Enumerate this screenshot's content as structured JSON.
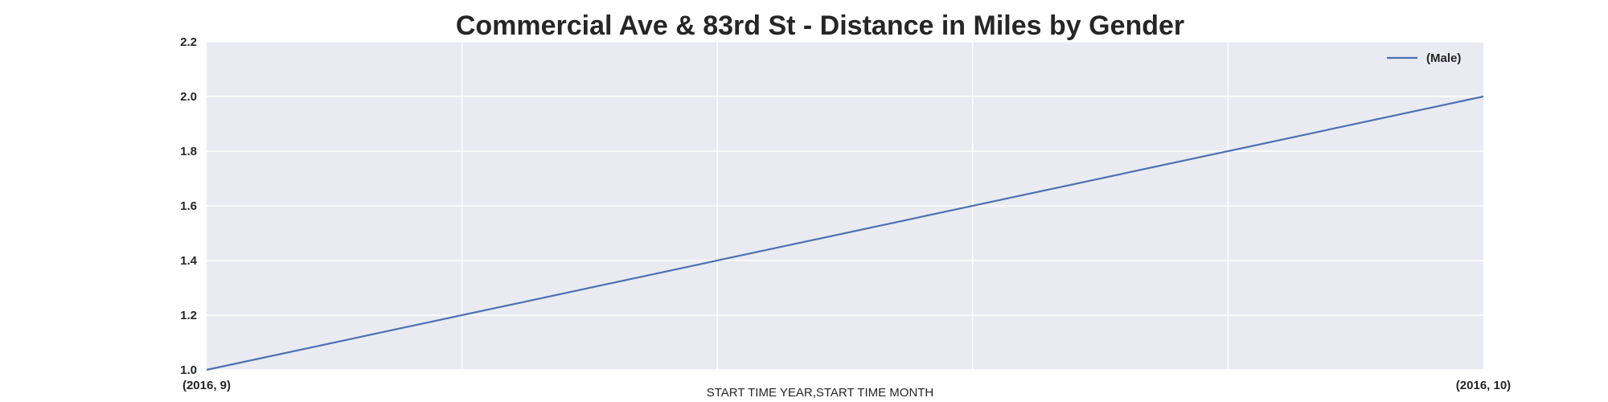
{
  "chart_data": {
    "type": "line",
    "title": "Commercial Ave & 83rd St - Distance in Miles by Gender",
    "xlabel": "START TIME YEAR,START TIME MONTH",
    "ylabel": "",
    "x": [
      "(2016, 9)",
      "(2016, 10)"
    ],
    "xtick_labels": [
      "(2016, 9)",
      "(2016, 10)"
    ],
    "ylim": [
      1.0,
      2.2
    ],
    "yticks": [
      1.0,
      1.2,
      1.4,
      1.6,
      1.8,
      2.0,
      2.2
    ],
    "ytick_labels": [
      "1.0",
      "1.2",
      "1.4",
      "1.6",
      "1.8",
      "2.0",
      "2.2"
    ],
    "series": [
      {
        "name": "(Male)",
        "values": [
          1.0,
          2.0
        ],
        "color": "#4c72b0"
      }
    ],
    "grid": true,
    "legend_position": "top-right",
    "background_color": "#eaeaf2",
    "grid_color": "#ffffff"
  }
}
